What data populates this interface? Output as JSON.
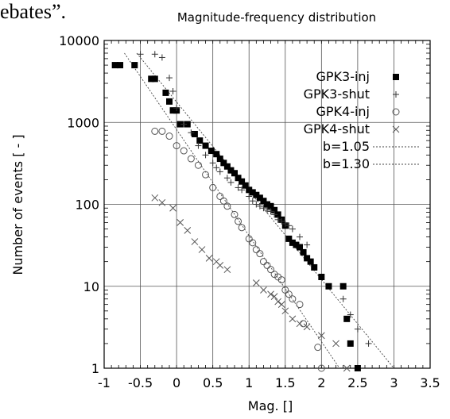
{
  "page": {
    "top_text_fragment": "ebates”."
  },
  "chart_data": {
    "type": "scatter",
    "title": "Magnitude-frequency distribution",
    "xlabel": "Mag. []",
    "ylabel": "Number of events [ - ]",
    "xlim": [
      -1,
      3.5
    ],
    "ylim": [
      1,
      10000
    ],
    "yscale": "log",
    "grid": true,
    "legend_placement": "top-right",
    "x_ticks": [
      "-1",
      "-0.5",
      "0",
      "0.5",
      "1",
      "1.5",
      "2",
      "2.5",
      "3",
      "3.5"
    ],
    "y_ticks": [
      "1",
      "10",
      "100",
      "1000",
      "10000"
    ],
    "series": [
      {
        "name": "GPK3-inj",
        "marker": "filled-square",
        "x": [
          -0.85,
          -0.78,
          -0.58,
          -0.35,
          -0.3,
          -0.15,
          -0.1,
          -0.05,
          0.0,
          0.05,
          0.15,
          0.25,
          0.32,
          0.4,
          0.48,
          0.55,
          0.6,
          0.65,
          0.7,
          0.75,
          0.8,
          0.85,
          0.9,
          0.95,
          1.0,
          1.05,
          1.1,
          1.15,
          1.2,
          1.25,
          1.3,
          1.35,
          1.4,
          1.45,
          1.5,
          1.55,
          1.6,
          1.65,
          1.7,
          1.75,
          1.8,
          1.85,
          1.9,
          2.0,
          2.1,
          2.3,
          2.35,
          2.4,
          2.5
        ],
        "y": [
          5000,
          5000,
          5000,
          3400,
          3400,
          2300,
          1800,
          1400,
          1400,
          950,
          950,
          720,
          600,
          520,
          450,
          410,
          360,
          320,
          290,
          260,
          240,
          210,
          190,
          170,
          150,
          140,
          130,
          120,
          110,
          100,
          95,
          85,
          75,
          65,
          55,
          38,
          34,
          32,
          30,
          26,
          22,
          20,
          17,
          13,
          10,
          10,
          4,
          2,
          1
        ]
      },
      {
        "name": "GPK3-shut",
        "marker": "plus",
        "x": [
          -0.5,
          -0.3,
          -0.2,
          -0.1,
          -0.05,
          0.0,
          0.1,
          0.2,
          0.3,
          0.4,
          0.5,
          0.55,
          0.6,
          0.7,
          0.75,
          0.85,
          0.9,
          1.0,
          1.05,
          1.1,
          1.15,
          1.2,
          1.25,
          1.3,
          1.35,
          1.4,
          1.45,
          1.5,
          1.55,
          1.6,
          1.7,
          1.8,
          2.3,
          2.4,
          2.5,
          2.65
        ],
        "y": [
          6800,
          6800,
          6200,
          3500,
          2400,
          1500,
          950,
          750,
          520,
          400,
          320,
          280,
          250,
          210,
          185,
          160,
          150,
          125,
          110,
          100,
          95,
          90,
          85,
          82,
          75,
          65,
          62,
          58,
          55,
          50,
          40,
          32,
          7,
          4.5,
          3,
          2
        ]
      },
      {
        "name": "GPK4-inj",
        "marker": "open-circle",
        "x": [
          -0.3,
          -0.2,
          -0.1,
          0.0,
          0.1,
          0.2,
          0.3,
          0.4,
          0.5,
          0.6,
          0.65,
          0.7,
          0.8,
          0.85,
          0.9,
          1.0,
          1.05,
          1.1,
          1.15,
          1.2,
          1.25,
          1.3,
          1.35,
          1.4,
          1.45,
          1.5,
          1.55,
          1.6,
          1.7,
          1.75,
          1.95,
          2.0
        ],
        "y": [
          780,
          780,
          680,
          520,
          450,
          360,
          300,
          230,
          160,
          125,
          110,
          95,
          75,
          62,
          52,
          38,
          34,
          28,
          25,
          20,
          18,
          16,
          14,
          13,
          12,
          9,
          8,
          7,
          6,
          3.5,
          1.8,
          1
        ]
      },
      {
        "name": "GPK4-shut",
        "marker": "cross",
        "x": [
          -0.3,
          -0.2,
          -0.05,
          0.05,
          0.15,
          0.25,
          0.35,
          0.45,
          0.55,
          0.6,
          0.7,
          1.1,
          1.2,
          1.3,
          1.35,
          1.4,
          1.45,
          1.5,
          1.6,
          1.7,
          1.8,
          2.0,
          2.2,
          2.35
        ],
        "y": [
          120,
          105,
          90,
          60,
          48,
          35,
          28,
          22,
          20,
          18,
          16,
          11,
          9,
          8,
          7.5,
          6.5,
          6,
          5,
          4,
          3.5,
          3.2,
          2.5,
          2,
          1
        ]
      },
      {
        "name": "b=1.05",
        "type": "line",
        "style": "dotted",
        "x": [
          -0.55,
          3.0
        ],
        "y": [
          7000,
          1
        ]
      },
      {
        "name": "b=1.30",
        "type": "line",
        "style": "dotted",
        "x": [
          -0.72,
          2.25
        ],
        "y": [
          7000,
          1
        ]
      }
    ]
  }
}
